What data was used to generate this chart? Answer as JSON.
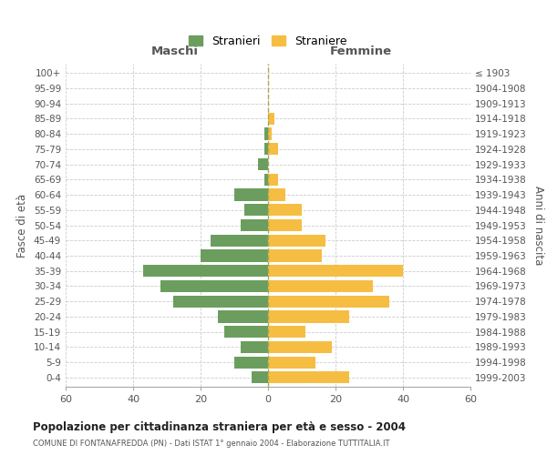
{
  "age_groups": [
    "100+",
    "95-99",
    "90-94",
    "85-89",
    "80-84",
    "75-79",
    "70-74",
    "65-69",
    "60-64",
    "55-59",
    "50-54",
    "45-49",
    "40-44",
    "35-39",
    "30-34",
    "25-29",
    "20-24",
    "15-19",
    "10-14",
    "5-9",
    "0-4"
  ],
  "birth_years": [
    "≤ 1903",
    "1904-1908",
    "1909-1913",
    "1914-1918",
    "1919-1923",
    "1924-1928",
    "1929-1933",
    "1934-1938",
    "1939-1943",
    "1944-1948",
    "1949-1953",
    "1954-1958",
    "1959-1963",
    "1964-1968",
    "1969-1973",
    "1974-1978",
    "1979-1983",
    "1984-1988",
    "1989-1993",
    "1994-1998",
    "1999-2003"
  ],
  "males": [
    0,
    0,
    0,
    0,
    1,
    1,
    3,
    1,
    10,
    7,
    8,
    17,
    20,
    37,
    32,
    28,
    15,
    13,
    8,
    10,
    5
  ],
  "females": [
    0,
    0,
    0,
    2,
    1,
    3,
    0,
    3,
    5,
    10,
    10,
    17,
    16,
    40,
    31,
    36,
    24,
    11,
    19,
    14,
    24
  ],
  "male_color": "#6b9e5e",
  "female_color": "#f5be42",
  "grid_color": "#cccccc",
  "dashed_line_color": "#aaa855",
  "title": "Popolazione per cittadinanza straniera per età e sesso - 2004",
  "subtitle": "COMUNE DI FONTANAFREDDA (PN) - Dati ISTAT 1° gennaio 2004 - Elaborazione TUTTITALIA.IT",
  "xlabel_left": "Maschi",
  "xlabel_right": "Femmine",
  "ylabel_left": "Fasce di età",
  "ylabel_right": "Anni di nascita",
  "legend_male": "Stranieri",
  "legend_female": "Straniere",
  "xlim": 60
}
